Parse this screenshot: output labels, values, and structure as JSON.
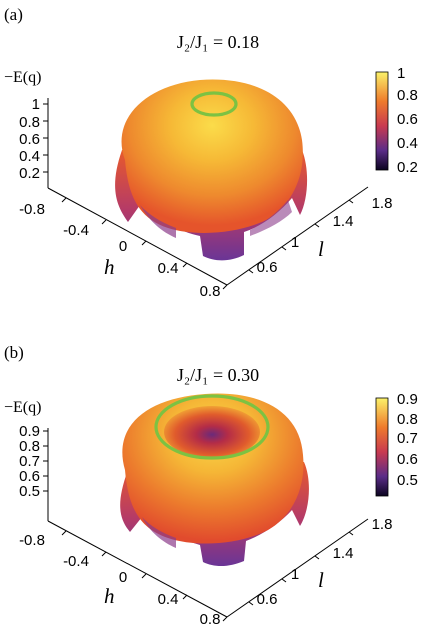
{
  "panels": [
    {
      "panel_label": "(a)",
      "title": "J₂/J₁ = 0.18",
      "zlabel": "−E(q)",
      "colorbar_ticks": [
        "1",
        "0.8",
        "0.6",
        "0.4",
        "0.2"
      ],
      "z_ticks": [
        "1",
        "0.8",
        "0.6",
        "0.4",
        "0.2"
      ],
      "h_ticks": [
        "-0.8",
        "-0.4",
        "0",
        "0.4",
        "0.8"
      ],
      "l_ticks": [
        "0.6",
        "1",
        "1.4",
        "1.8"
      ],
      "h_label": "h",
      "l_label": "l"
    },
    {
      "panel_label": "(b)",
      "title": "J₂/J₁ = 0.30",
      "zlabel": "−E(q)",
      "colorbar_ticks": [
        "0.9",
        "0.8",
        "0.7",
        "0.6",
        "0.5"
      ],
      "z_ticks": [
        "0.9",
        "0.8",
        "0.7",
        "0.6",
        "0.5"
      ],
      "h_ticks": [
        "-0.8",
        "-0.4",
        "0",
        "0.4",
        "0.8"
      ],
      "l_ticks": [
        "0.6",
        "1",
        "1.4",
        "1.8"
      ],
      "h_label": "h",
      "l_label": "l"
    }
  ],
  "colors": {
    "ring": "#7cc242",
    "surface_high": "#f6c63a",
    "surface_mid": "#ea6d2e",
    "surface_low": "#5b2c88"
  }
}
